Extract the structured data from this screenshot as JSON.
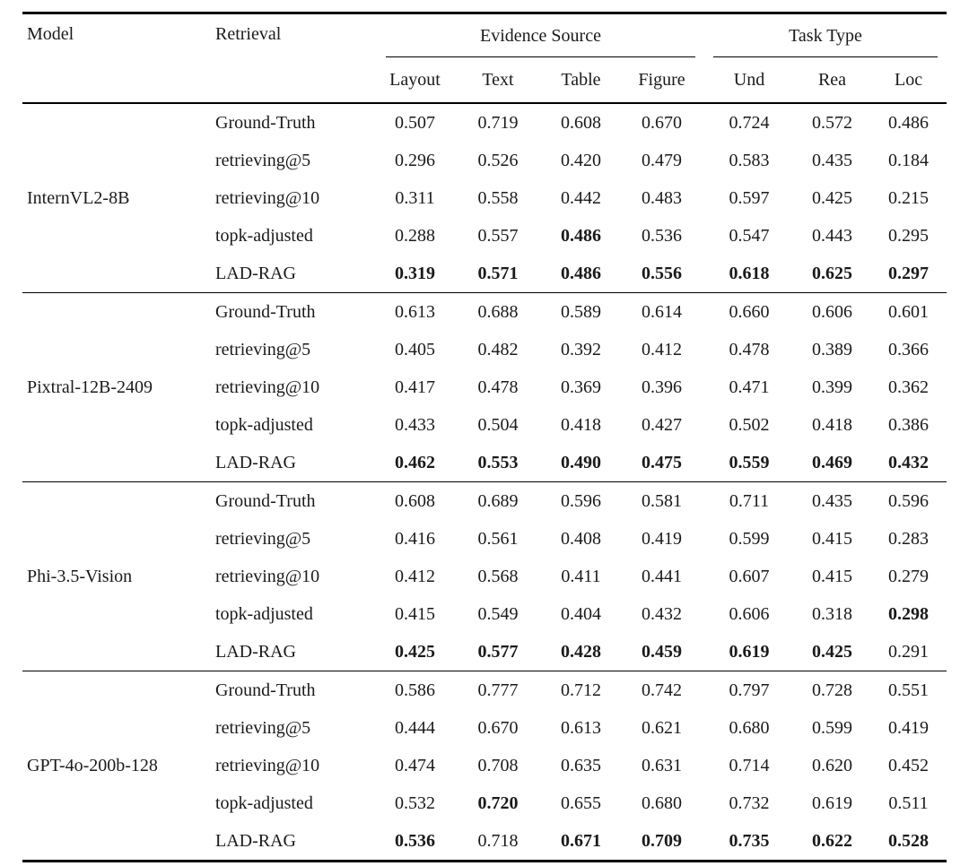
{
  "style": {
    "ink_color": "#1a1a1a",
    "background_color": "#ffffff"
  },
  "table": {
    "headers": {
      "model": "Model",
      "retrieval": "Retrieval",
      "evidence_source": "Evidence Source",
      "task_type": "Task Type",
      "subcolumns": [
        "Layout",
        "Text",
        "Table",
        "Figure",
        "Und",
        "Rea",
        "Loc"
      ]
    },
    "groups": [
      {
        "model": "InternVL2-8B",
        "rows": [
          {
            "retrieval": "Ground-Truth",
            "values": [
              "0.507",
              "0.719",
              "0.608",
              "0.670",
              "0.724",
              "0.572",
              "0.486"
            ],
            "bold": [
              0,
              0,
              0,
              0,
              0,
              0,
              0
            ]
          },
          {
            "retrieval": "retrieving@5",
            "values": [
              "0.296",
              "0.526",
              "0.420",
              "0.479",
              "0.583",
              "0.435",
              "0.184"
            ],
            "bold": [
              0,
              0,
              0,
              0,
              0,
              0,
              0
            ]
          },
          {
            "retrieval": "retrieving@10",
            "values": [
              "0.311",
              "0.558",
              "0.442",
              "0.483",
              "0.597",
              "0.425",
              "0.215"
            ],
            "bold": [
              0,
              0,
              0,
              0,
              0,
              0,
              0
            ]
          },
          {
            "retrieval": "topk-adjusted",
            "values": [
              "0.288",
              "0.557",
              "0.486",
              "0.536",
              "0.547",
              "0.443",
              "0.295"
            ],
            "bold": [
              0,
              0,
              1,
              0,
              0,
              0,
              0
            ]
          },
          {
            "retrieval": "LAD-RAG",
            "values": [
              "0.319",
              "0.571",
              "0.486",
              "0.556",
              "0.618",
              "0.625",
              "0.297"
            ],
            "bold": [
              1,
              1,
              1,
              1,
              1,
              1,
              1
            ]
          }
        ]
      },
      {
        "model": "Pixtral-12B-2409",
        "rows": [
          {
            "retrieval": "Ground-Truth",
            "values": [
              "0.613",
              "0.688",
              "0.589",
              "0.614",
              "0.660",
              "0.606",
              "0.601"
            ],
            "bold": [
              0,
              0,
              0,
              0,
              0,
              0,
              0
            ]
          },
          {
            "retrieval": "retrieving@5",
            "values": [
              "0.405",
              "0.482",
              "0.392",
              "0.412",
              "0.478",
              "0.389",
              "0.366"
            ],
            "bold": [
              0,
              0,
              0,
              0,
              0,
              0,
              0
            ]
          },
          {
            "retrieval": "retrieving@10",
            "values": [
              "0.417",
              "0.478",
              "0.369",
              "0.396",
              "0.471",
              "0.399",
              "0.362"
            ],
            "bold": [
              0,
              0,
              0,
              0,
              0,
              0,
              0
            ]
          },
          {
            "retrieval": "topk-adjusted",
            "values": [
              "0.433",
              "0.504",
              "0.418",
              "0.427",
              "0.502",
              "0.418",
              "0.386"
            ],
            "bold": [
              0,
              0,
              0,
              0,
              0,
              0,
              0
            ]
          },
          {
            "retrieval": "LAD-RAG",
            "values": [
              "0.462",
              "0.553",
              "0.490",
              "0.475",
              "0.559",
              "0.469",
              "0.432"
            ],
            "bold": [
              1,
              1,
              1,
              1,
              1,
              1,
              1
            ]
          }
        ]
      },
      {
        "model": "Phi-3.5-Vision",
        "rows": [
          {
            "retrieval": "Ground-Truth",
            "values": [
              "0.608",
              "0.689",
              "0.596",
              "0.581",
              "0.711",
              "0.435",
              "0.596"
            ],
            "bold": [
              0,
              0,
              0,
              0,
              0,
              0,
              0
            ]
          },
          {
            "retrieval": "retrieving@5",
            "values": [
              "0.416",
              "0.561",
              "0.408",
              "0.419",
              "0.599",
              "0.415",
              "0.283"
            ],
            "bold": [
              0,
              0,
              0,
              0,
              0,
              0,
              0
            ]
          },
          {
            "retrieval": "retrieving@10",
            "values": [
              "0.412",
              "0.568",
              "0.411",
              "0.441",
              "0.607",
              "0.415",
              "0.279"
            ],
            "bold": [
              0,
              0,
              0,
              0,
              0,
              0,
              0
            ]
          },
          {
            "retrieval": "topk-adjusted",
            "values": [
              "0.415",
              "0.549",
              "0.404",
              "0.432",
              "0.606",
              "0.318",
              "0.298"
            ],
            "bold": [
              0,
              0,
              0,
              0,
              0,
              0,
              1
            ]
          },
          {
            "retrieval": "LAD-RAG",
            "values": [
              "0.425",
              "0.577",
              "0.428",
              "0.459",
              "0.619",
              "0.425",
              "0.291"
            ],
            "bold": [
              1,
              1,
              1,
              1,
              1,
              1,
              0
            ]
          }
        ]
      },
      {
        "model": "GPT-4o-200b-128",
        "rows": [
          {
            "retrieval": "Ground-Truth",
            "values": [
              "0.586",
              "0.777",
              "0.712",
              "0.742",
              "0.797",
              "0.728",
              "0.551"
            ],
            "bold": [
              0,
              0,
              0,
              0,
              0,
              0,
              0
            ]
          },
          {
            "retrieval": "retrieving@5",
            "values": [
              "0.444",
              "0.670",
              "0.613",
              "0.621",
              "0.680",
              "0.599",
              "0.419"
            ],
            "bold": [
              0,
              0,
              0,
              0,
              0,
              0,
              0
            ]
          },
          {
            "retrieval": "retrieving@10",
            "values": [
              "0.474",
              "0.708",
              "0.635",
              "0.631",
              "0.714",
              "0.620",
              "0.452"
            ],
            "bold": [
              0,
              0,
              0,
              0,
              0,
              0,
              0
            ]
          },
          {
            "retrieval": "topk-adjusted",
            "values": [
              "0.532",
              "0.720",
              "0.655",
              "0.680",
              "0.732",
              "0.619",
              "0.511"
            ],
            "bold": [
              0,
              1,
              0,
              0,
              0,
              0,
              0
            ]
          },
          {
            "retrieval": "LAD-RAG",
            "values": [
              "0.536",
              "0.718",
              "0.671",
              "0.709",
              "0.735",
              "0.622",
              "0.528"
            ],
            "bold": [
              1,
              0,
              1,
              1,
              1,
              1,
              1
            ]
          }
        ]
      }
    ]
  }
}
